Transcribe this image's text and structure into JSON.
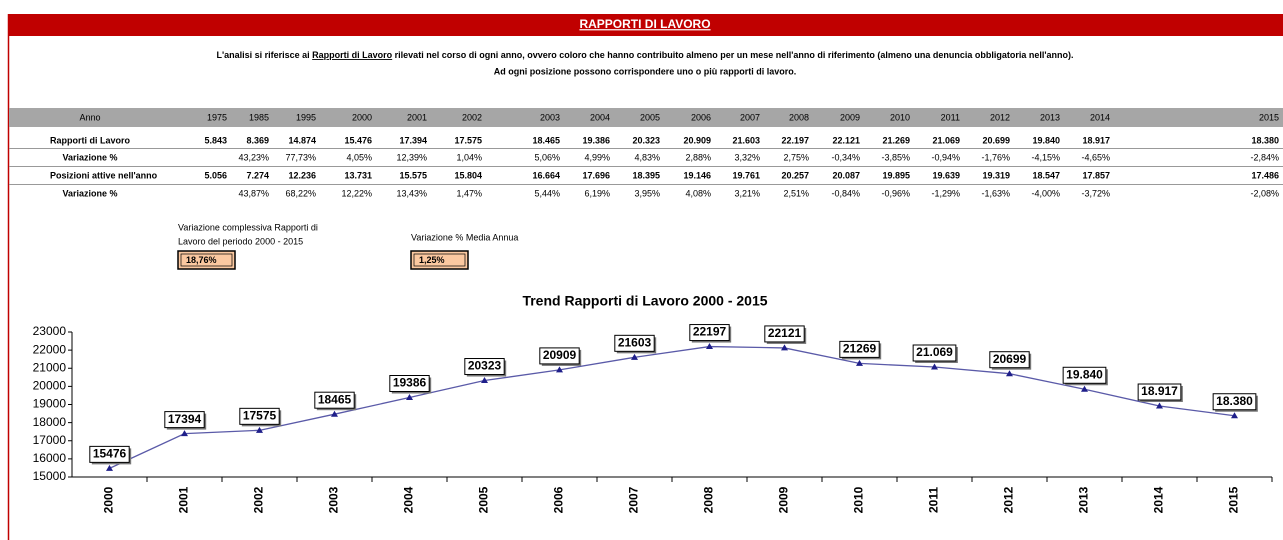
{
  "header": {
    "title": "RAPPORTI DI LAVORO",
    "line1": [
      "L'analisi si riferisce ai ",
      "Rapporti di Lavoro",
      " rilevati nel corso di ogni anno, ovvero coloro che hanno contribuito almeno per un mese nell'anno di riferimento (almeno una denuncia obbligatoria nell'anno)."
    ],
    "line2": "Ad ogni posizione possono corrispondere uno o più rapporti di lavoro."
  },
  "table": {
    "header": [
      "Anno",
      "1975",
      "1985",
      "1995",
      "2000",
      "2001",
      "2002",
      "2003",
      "2004",
      "2005",
      "2006",
      "2007",
      "2008",
      "2009",
      "2010",
      "2011",
      "2012",
      "2013",
      "2014",
      "2015"
    ],
    "rows": [
      [
        "Rapporti di Lavoro",
        "5.843",
        "8.369",
        "14.874",
        "15.476",
        "17.394",
        "17.575",
        "18.465",
        "19.386",
        "20.323",
        "20.909",
        "21.603",
        "22.197",
        "22.121",
        "21.269",
        "21.069",
        "20.699",
        "19.840",
        "18.917",
        "18.380"
      ],
      [
        "Variazione %",
        null,
        "43,23%",
        "77,73%",
        "4,05%",
        "12,39%",
        "1,04%",
        "5,06%",
        "4,99%",
        "4,83%",
        "2,88%",
        "3,32%",
        "2,75%",
        "-0,34%",
        "-3,85%",
        "-0,94%",
        "-1,76%",
        "-4,15%",
        "-4,65%",
        "-2,84%"
      ],
      [
        "Posizioni attive nell'anno",
        "5.056",
        "7.274",
        "12.236",
        "13.731",
        "15.575",
        "15.804",
        "16.664",
        "17.696",
        "18.395",
        "19.146",
        "19.761",
        "20.257",
        "20.087",
        "19.895",
        "19.639",
        "19.319",
        "18.547",
        "17.857",
        "17.486"
      ],
      [
        "Variazione %",
        null,
        "43,87%",
        "68,22%",
        "12,22%",
        "13,43%",
        "1,47%",
        "5,44%",
        "6,19%",
        "3,95%",
        "4,08%",
        "3,21%",
        "2,51%",
        "-0,84%",
        "-0,96%",
        "-1,29%",
        "-1,63%",
        "-4,00%",
        "-3,72%",
        "-2,08%"
      ]
    ]
  },
  "summary": [
    {
      "label": [
        "Variazione complessiva Rapporti di",
        "Lavoro del periodo 2000 - 2015"
      ],
      "value": "18,76%"
    },
    {
      "label": [
        "Variazione % Media Annua"
      ],
      "value": "1,25%"
    }
  ],
  "chart_data": {
    "type": "line",
    "title": "Trend Rapporti di Lavoro 2000 - 2015",
    "categories": [
      "2000",
      "2001",
      "2002",
      "2003",
      "2004",
      "2005",
      "2006",
      "2007",
      "2008",
      "2009",
      "2010",
      "2011",
      "2012",
      "2013",
      "2014",
      "2015"
    ],
    "values": [
      15476,
      17394,
      17575,
      18465,
      19386,
      20323,
      20909,
      21603,
      22197,
      22121,
      21269,
      21069,
      20699,
      19840,
      18917,
      18380
    ],
    "value_labels": [
      "15476",
      "17394",
      "17575",
      "18465",
      "19386",
      "20323",
      "20909",
      "21603",
      "22197",
      "22121",
      "21269",
      "21.069",
      "20699",
      "19.840",
      "18.917",
      "18.380"
    ],
    "color": "#5a5aa8",
    "marker_color": "#1f1f8a",
    "ylim": [
      15000,
      23000
    ],
    "yticks": [
      15000,
      16000,
      17000,
      18000,
      19000,
      20000,
      21000,
      22000,
      23000
    ]
  }
}
